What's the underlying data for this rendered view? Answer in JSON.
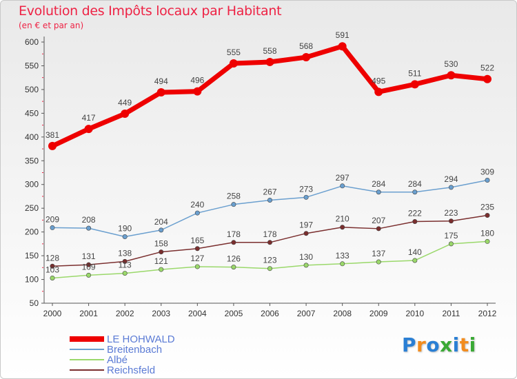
{
  "title": "Evolution des Impôts locaux par Habitant",
  "subtitle": "(en € et par an)",
  "brand": {
    "letters": [
      "P",
      "r",
      "o",
      "x",
      "i",
      "t",
      "i"
    ],
    "colors": [
      "#2a7fd4",
      "#f28c1e",
      "#2a7fd4",
      "#3aa935",
      "#2a7fd4",
      "#f28c1e",
      "#3aa935"
    ]
  },
  "colors": {
    "title": "#ee2244",
    "axis": "#555555",
    "grid_tick": "#ee2244",
    "legend_text": "#5b7bd5"
  },
  "chart_data": {
    "type": "line",
    "title": "Evolution des Impôts locaux par Habitant",
    "subtitle": "(en € et par an)",
    "xlabel": "",
    "ylabel": "",
    "x": [
      "2000",
      "2001",
      "2002",
      "2003",
      "2004",
      "2005",
      "2006",
      "2007",
      "2008",
      "2009",
      "2010",
      "2011",
      "2012"
    ],
    "yticks": [
      50,
      100,
      150,
      200,
      250,
      300,
      350,
      400,
      450,
      500,
      550,
      600
    ],
    "ylim": [
      50,
      600
    ],
    "legend_position": "bottom-left",
    "series": [
      {
        "name": "LE HOHWALD",
        "color": "#ee0000",
        "values": [
          381,
          417,
          449,
          494,
          496,
          555,
          558,
          568,
          591,
          495,
          511,
          530,
          522
        ],
        "labels": [
          "381",
          "417",
          "449",
          "494",
          "496",
          "555",
          "558",
          "568",
          "591",
          "495",
          "511",
          "530",
          "522"
        ]
      },
      {
        "name": "Breitenbach",
        "color": "#6a9fcf",
        "values": [
          209,
          208,
          190,
          204,
          240,
          258,
          267,
          273,
          297,
          284,
          284,
          294,
          309
        ],
        "labels": [
          "209",
          "208",
          "190",
          "204",
          "240",
          "258",
          "267",
          "273",
          "297",
          "284",
          "284",
          "294",
          "309"
        ]
      },
      {
        "name": "Albé",
        "color": "#9ad86a",
        "values": [
          103,
          109,
          113,
          121,
          127,
          126,
          123,
          130,
          133,
          137,
          140,
          175,
          180
        ],
        "labels": [
          "103",
          "109",
          "113",
          "121",
          "127",
          "126",
          "123",
          "130",
          "133",
          "137",
          "140",
          "175",
          "180"
        ]
      },
      {
        "name": "Reichsfeld",
        "color": "#7a2e2e",
        "values": [
          128,
          131,
          138,
          158,
          165,
          178,
          178,
          197,
          210,
          207,
          222,
          223,
          235
        ],
        "labels": [
          "128",
          "131",
          "138",
          "158",
          "165",
          "178",
          "178",
          "197",
          "210",
          "207",
          "222",
          "223",
          "235"
        ]
      }
    ]
  }
}
